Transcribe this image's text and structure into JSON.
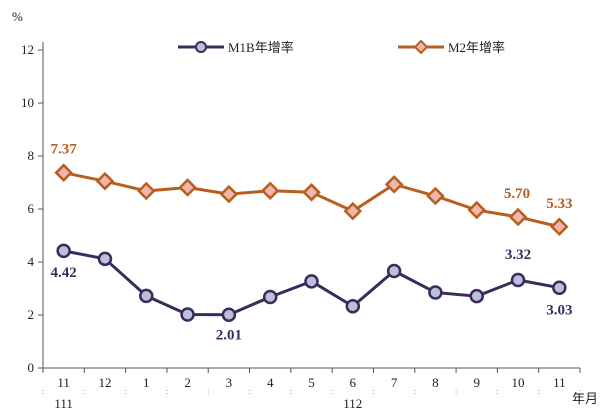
{
  "chart_data": {
    "type": "line",
    "title": "",
    "ylabel": "%",
    "xlabel": "年月",
    "ylim": [
      0,
      12
    ],
    "yticks": [
      0,
      2,
      4,
      6,
      8,
      10,
      12
    ],
    "categories": [
      "11",
      "12",
      "1",
      "2",
      "3",
      "4",
      "5",
      "6",
      "7",
      "8",
      "9",
      "10",
      "11"
    ],
    "year_labels": [
      {
        "label": "111",
        "at_index": 0
      },
      {
        "label": "112",
        "at_index": 7
      }
    ],
    "legend_position": "top",
    "series": [
      {
        "name": "M1B年增率",
        "color": "#3d2a5c",
        "marker_fill": "#b9c2d6",
        "marker": "circle",
        "values": [
          4.42,
          4.12,
          2.72,
          2.02,
          2.01,
          2.68,
          3.27,
          2.33,
          3.66,
          2.85,
          2.71,
          3.32,
          3.03
        ]
      },
      {
        "name": "M2年增率",
        "color": "#b85e1e",
        "marker_fill": "#f0b5ad",
        "marker": "diamond",
        "values": [
          7.37,
          7.05,
          6.68,
          6.81,
          6.56,
          6.69,
          6.63,
          5.92,
          6.93,
          6.49,
          5.96,
          5.7,
          5.33
        ]
      }
    ],
    "data_labels": [
      {
        "series": 0,
        "index": 0,
        "text": "4.42"
      },
      {
        "series": 0,
        "index": 4,
        "text": "2.01"
      },
      {
        "series": 0,
        "index": 11,
        "text": "3.32"
      },
      {
        "series": 0,
        "index": 12,
        "text": "3.03"
      },
      {
        "series": 1,
        "index": 0,
        "text": "7.37"
      },
      {
        "series": 1,
        "index": 11,
        "text": "5.70"
      },
      {
        "series": 1,
        "index": 12,
        "text": "5.33"
      }
    ]
  }
}
